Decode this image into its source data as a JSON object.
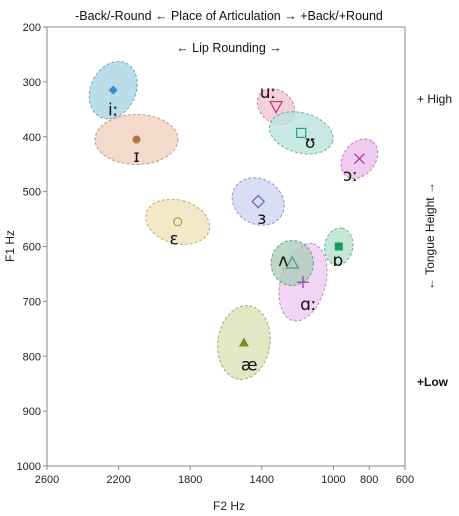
{
  "chart_data": {
    "type": "scatter",
    "top_label": "-Back/-Round  ← Place of Articulation →  +Back/+Round",
    "lip_label": "← Lip Rounding →",
    "high_label": "+ High",
    "low_label": "+Low",
    "tongue_label": "← Tongue Height →",
    "xlabel": "F2 Hz",
    "ylabel": "F1 Hz",
    "xlim": [
      2600,
      600
    ],
    "ylim": [
      1000,
      200
    ],
    "x_ticks": [
      2600,
      2200,
      1800,
      1400,
      1000,
      800,
      600
    ],
    "y_ticks": [
      200,
      300,
      400,
      500,
      600,
      700,
      800,
      900,
      1000
    ],
    "grid": false,
    "vowels": [
      {
        "symbol": "iː",
        "f2": 2230,
        "f1": 315,
        "rx": 110,
        "ry": 45,
        "angle": -65,
        "fill": "#a8d3e2",
        "stroke": "#6aa6bf",
        "marker": "diamond",
        "mcolor": "#2f8fd0",
        "label_f2": 2230,
        "label_f1": 350
      },
      {
        "symbol": "ɪ",
        "f2": 2100,
        "f1": 405,
        "rx": 175,
        "ry": 50,
        "angle": 0,
        "fill": "#efcfbd",
        "stroke": "#c09a85",
        "marker": "circle",
        "mcolor": "#b9733f",
        "label_f2": 2100,
        "label_f1": 435
      },
      {
        "symbol": "ɛ",
        "f2": 1870,
        "f1": 555,
        "rx": 65,
        "ry": 65,
        "angle": -75,
        "fill": "#f0e1b8",
        "stroke": "#c2ae72",
        "marker": "circle-open",
        "mcolor": "#b69b3f",
        "label_f2": 1890,
        "label_f1": 585
      },
      {
        "symbol": "æ",
        "f2": 1500,
        "f1": 775,
        "rx": 150,
        "ry": 52,
        "angle": -82,
        "fill": "#d8e1b6",
        "stroke": "#a4b06c",
        "marker": "triangle",
        "mcolor": "#7d8c1f",
        "label_f2": 1470,
        "label_f1": 815
      },
      {
        "symbol": "uː",
        "f2": 1320,
        "f1": 345,
        "rx": 58,
        "ry": 32,
        "angle": 40,
        "fill": "#f2c1d3",
        "stroke": "#c589a1",
        "marker": "triangle-down-open",
        "mcolor": "#c6356b",
        "label_f2": 1365,
        "label_f1": 318
      },
      {
        "symbol": "ʊ",
        "f2": 1180,
        "f1": 393,
        "rx": 125,
        "ry": 40,
        "angle": 15,
        "fill": "#b9e3d9",
        "stroke": "#6fb1a3",
        "marker": "square-open",
        "mcolor": "#2d9b8b",
        "label_f2": 1130,
        "label_f1": 410
      },
      {
        "symbol": "ɔː",
        "f2": 855,
        "f1": 440,
        "rx": 65,
        "ry": 32,
        "angle": -52,
        "fill": "#ebbde8",
        "stroke": "#c084bb",
        "marker": "x",
        "mcolor": "#a3359d",
        "label_f2": 905,
        "label_f1": 470
      },
      {
        "symbol": "ɜ",
        "f2": 1420,
        "f1": 518,
        "rx": 95,
        "ry": 45,
        "angle": 30,
        "fill": "#ced2ee",
        "stroke": "#8f96c9",
        "marker": "diamond-open",
        "mcolor": "#5b64b8",
        "label_f2": 1400,
        "label_f1": 548
      },
      {
        "symbol": "ɒ",
        "f2": 970,
        "f1": 600,
        "rx": 48,
        "ry": 28,
        "angle": -80,
        "fill": "#b5e0cc",
        "stroke": "#6fb08f",
        "marker": "square",
        "mcolor": "#169a6a",
        "label_f2": 975,
        "label_f1": 625
      },
      {
        "symbol": "ɑː",
        "f2": 1170,
        "f1": 665,
        "rx": 165,
        "ry": 45,
        "angle": -75,
        "fill": "#eccbee",
        "stroke": "#bb8ec0",
        "marker": "plus",
        "mcolor": "#8e3c9a",
        "label_f2": 1140,
        "label_f1": 705
      },
      {
        "symbol": "ʌ",
        "f2": 1230,
        "f1": 630,
        "rx": 62,
        "ry": 45,
        "angle": 0,
        "fill": "#a9cdbb",
        "stroke": "#6a9f87",
        "marker": "triangle-open",
        "mcolor": "#5b8f77",
        "label_f2": 1280,
        "label_f1": 625
      }
    ]
  }
}
